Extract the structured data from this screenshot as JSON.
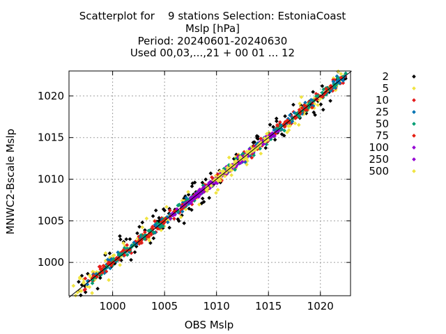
{
  "chart_data": {
    "type": "scatter",
    "title_lines": [
      "Scatterplot for    9 stations Selection: EstoniaCoast",
      "Mslp [hPa]",
      "Period: 20240601-20240630",
      "Used 00,03,...,21 + 00 01 ... 12"
    ],
    "xlabel": "OBS Mslp",
    "ylabel": "MNWC2-Bscale Mslp",
    "xlim": [
      995.8,
      1022.9
    ],
    "ylim": [
      996.0,
      1023.0
    ],
    "x_ticks": [
      1000,
      1005,
      1010,
      1015,
      1020
    ],
    "y_ticks": [
      1000,
      1005,
      1010,
      1015,
      1020
    ],
    "grid": true,
    "legend_position": "right, outside plot",
    "diagonal_line": true,
    "series": [
      {
        "name": "2",
        "color": "#000000",
        "spread": 1.2
      },
      {
        "name": "5",
        "color": "#f0e442",
        "spread": 1.0
      },
      {
        "name": "10",
        "color": "#e41a1c",
        "spread": 0.6
      },
      {
        "name": "25",
        "color": "#0072b2",
        "spread": 0.45
      },
      {
        "name": "50",
        "color": "#009e73",
        "spread": 0.4
      },
      {
        "name": "75",
        "color": "#e51e10",
        "spread": 0.35
      },
      {
        "name": "100",
        "color": "#9400d3",
        "spread": 0.3
      },
      {
        "name": "250",
        "color": "#9400d3",
        "spread": 0.3
      },
      {
        "name": "500",
        "color": "#f0e442",
        "spread": 0.3
      }
    ]
  }
}
